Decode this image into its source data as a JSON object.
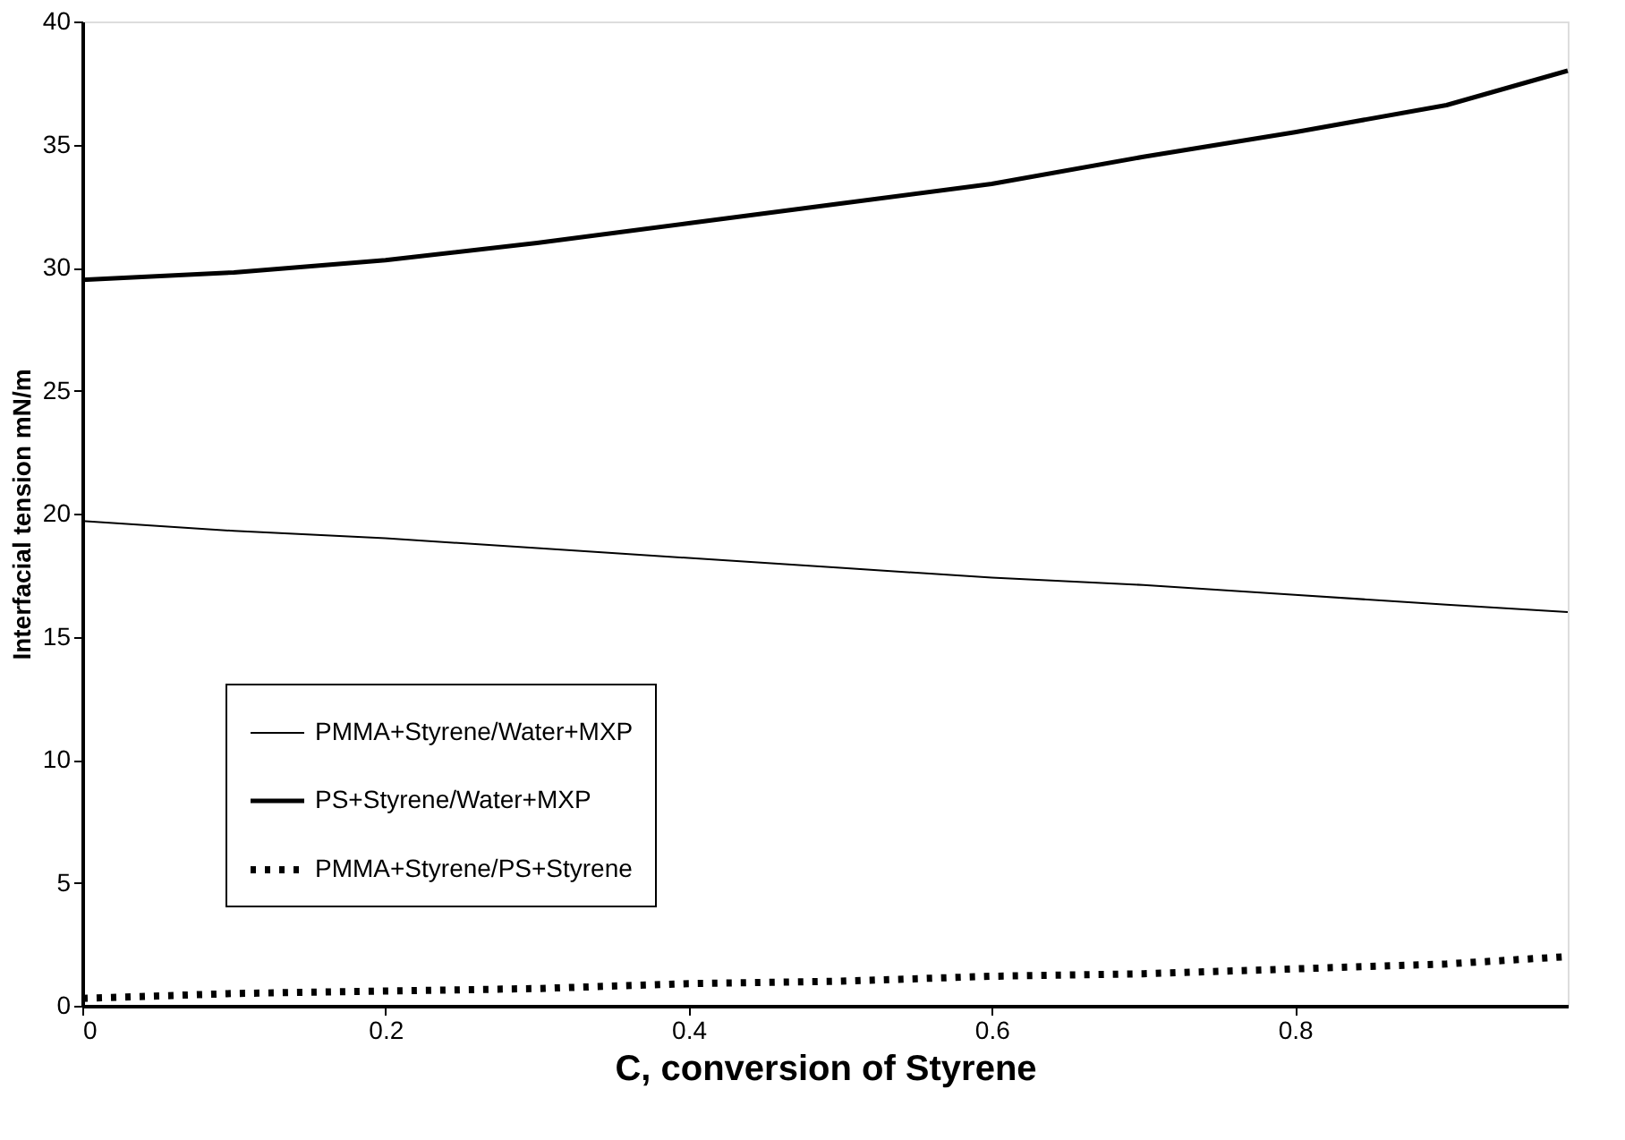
{
  "chart_data": {
    "type": "line",
    "xlabel": "C, conversion of Styrene",
    "ylabel": "Interfacial tension  mN/m",
    "xlim": [
      0,
      0.98
    ],
    "xticks": [
      {
        "value": 0,
        "label": "0"
      },
      0.2,
      0.4,
      0.6,
      0.8
    ],
    "ylim": [
      0,
      40
    ],
    "yticks": [
      0,
      5,
      10,
      15,
      20,
      25,
      30,
      35,
      40
    ],
    "grid": false,
    "legend": "left",
    "marker": "none",
    "series": [
      {
        "name": "PMMA+Styrene/Water+MXP",
        "color": "#000000",
        "line_style": "solid",
        "x": [
          0,
          0.1,
          0.2,
          0.3,
          0.4,
          0.5,
          0.6,
          0.7,
          0.8,
          0.9,
          0.98
        ],
        "values": [
          19.7,
          19.3,
          19.0,
          18.6,
          18.2,
          17.8,
          17.4,
          17.1,
          16.7,
          16.3,
          16.0
        ]
      },
      {
        "name": "PS+Styrene/Water+MXP",
        "color": "#000000",
        "line_style": "solid",
        "x": [
          0,
          0.1,
          0.2,
          0.3,
          0.4,
          0.5,
          0.6,
          0.7,
          0.8,
          0.9,
          0.98
        ],
        "values": [
          29.5,
          29.8,
          30.3,
          31.0,
          31.8,
          32.6,
          33.4,
          34.5,
          35.5,
          36.6,
          38.0
        ]
      },
      {
        "name": "PMMA+Styrene/PS+Styrene",
        "color": "#000000",
        "line_style": "dotted",
        "x": [
          0,
          0.1,
          0.2,
          0.3,
          0.4,
          0.5,
          0.6,
          0.7,
          0.8,
          0.9,
          0.98
        ],
        "values": [
          0.3,
          0.5,
          0.6,
          0.7,
          0.9,
          1.0,
          1.2,
          1.3,
          1.5,
          1.7,
          2.0
        ]
      }
    ]
  }
}
